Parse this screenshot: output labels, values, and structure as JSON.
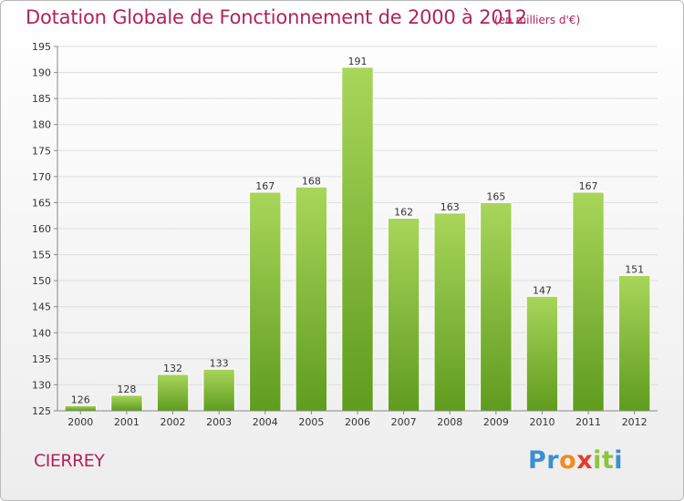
{
  "title": "Dotation Globale de Fonctionnement de 2000 à 2012",
  "subtitle": "(en milliers d'€)",
  "commune": "CIERREY",
  "logo": {
    "letters": [
      "P",
      "r",
      "o",
      "x",
      "i",
      "t",
      "i"
    ],
    "colors": [
      "#3a8fd0",
      "#3a8fd0",
      "#f28c1e",
      "#e63a2e",
      "#8bc53f",
      "#8bc53f",
      "#3a8fd0"
    ]
  },
  "colors": {
    "bar_top": "#a8d65a",
    "bar_bottom": "#5f9c1e",
    "title": "#b0245c",
    "grid": "#dddddd"
  },
  "chart_data": {
    "type": "bar",
    "categories": [
      "2000",
      "2001",
      "2002",
      "2003",
      "2004",
      "2005",
      "2006",
      "2007",
      "2008",
      "2009",
      "2010",
      "2011",
      "2012"
    ],
    "values": [
      126,
      128,
      132,
      133,
      167,
      168,
      191,
      162,
      163,
      165,
      147,
      167,
      151
    ],
    "data_labels": [
      "126",
      "128",
      "132",
      "133",
      "167",
      "168",
      "191",
      "162",
      "163",
      "165",
      "147",
      "167",
      "151"
    ],
    "ylim": [
      125,
      195
    ],
    "yticks": [
      125,
      130,
      135,
      140,
      145,
      150,
      155,
      160,
      165,
      170,
      175,
      180,
      185,
      190,
      195
    ],
    "grid": true,
    "legend": "none"
  }
}
